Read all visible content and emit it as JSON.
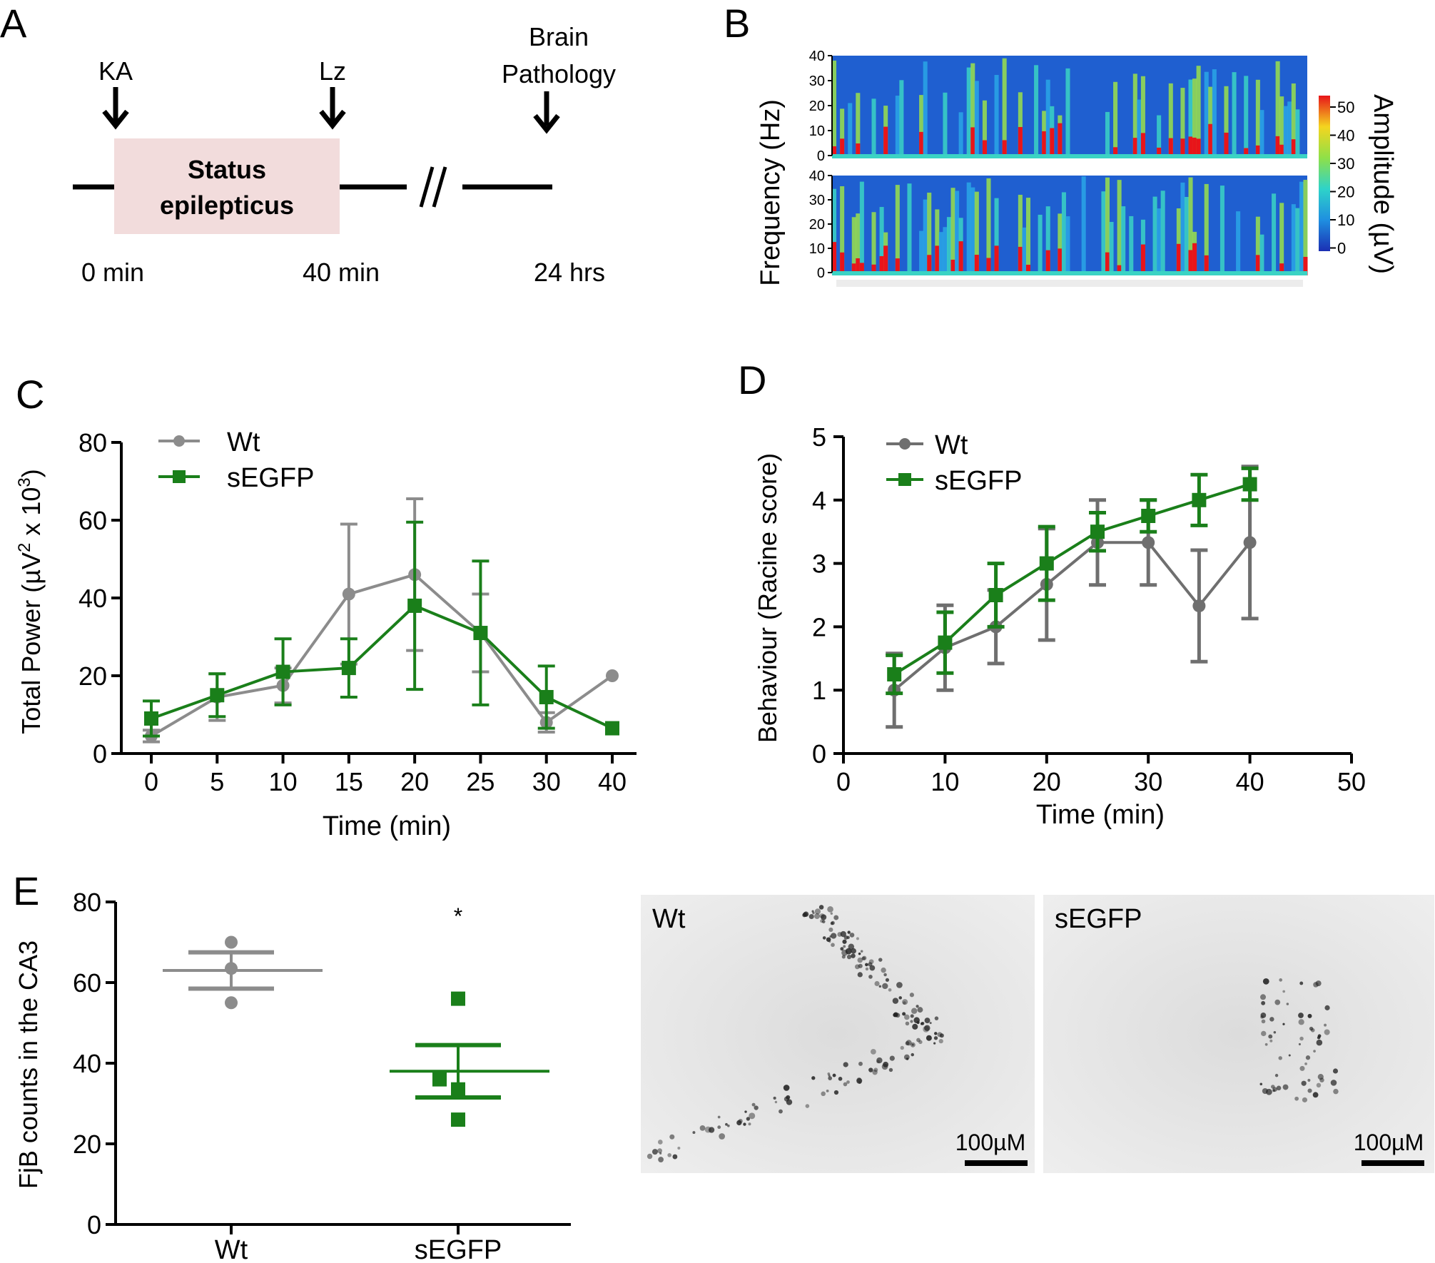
{
  "colors": {
    "wt": "#8c8c8c",
    "wt_dark": "#6f6f6f",
    "segfp": "#1a7f1a",
    "box": "#f2dcdc"
  },
  "panels": {
    "a": "A",
    "b": "B",
    "c": "C",
    "d": "D",
    "e": "E"
  },
  "timeline": {
    "ka": "KA",
    "lz": "Lz",
    "brain_line1": "Brain",
    "brain_line2": "Pathology",
    "status_line1": "Status",
    "status_line2": "epilepticus",
    "t0": "0 min",
    "t40": "40 min",
    "t24": "24 hrs"
  },
  "spectrogram": {
    "ylabel": "Frequency (Hz)",
    "yticks": [
      "40",
      "30",
      "20",
      "10",
      "0"
    ],
    "colorbar_label": "Amplitude (µV)",
    "colorbar_ticks": [
      "50",
      "40",
      "30",
      "20",
      "10",
      "0"
    ]
  },
  "micrographs": {
    "wt_label": "Wt",
    "segfp_label": "sEGFP",
    "scale_wt": "100µM",
    "scale_segfp": "100µM"
  },
  "chart_data": [
    {
      "id": "C",
      "type": "line",
      "title": "",
      "xlabel": "Time (min)",
      "ylabel": "Total Power (µV",
      "ylabel_sup": "2",
      "ylabel_mid": " x 10",
      "ylabel_sup2": "3",
      "ylabel_end": ")",
      "categories": [
        "0",
        "5",
        "10",
        "15",
        "20",
        "25",
        "30",
        "40"
      ],
      "yticks": [
        "0",
        "20",
        "40",
        "60",
        "80"
      ],
      "ylim": [
        0,
        80
      ],
      "legend": [
        "Wt",
        "sEGFP"
      ],
      "legend_position": "top-left",
      "series": [
        {
          "name": "Wt",
          "values": [
            4.5,
            14.5,
            17.5,
            41,
            46,
            31,
            8,
            20
          ],
          "err": [
            1.5,
            6,
            4.5,
            18,
            19.5,
            10,
            2.5,
            0
          ]
        },
        {
          "name": "sEGFP",
          "values": [
            9,
            15,
            21,
            22,
            38,
            31,
            14.5,
            6.5
          ],
          "err": [
            4.5,
            5.5,
            8.5,
            7.5,
            21.5,
            18.5,
            8,
            0
          ]
        }
      ]
    },
    {
      "id": "D",
      "type": "line",
      "title": "",
      "xlabel": "Time (min)",
      "ylabel": "Behaviour (Racine score)",
      "xticks": [
        "0",
        "10",
        "20",
        "30",
        "40",
        "50"
      ],
      "yticks": [
        "0",
        "1",
        "2",
        "3",
        "4",
        "5"
      ],
      "xlim": [
        0,
        50
      ],
      "ylim": [
        0,
        5
      ],
      "legend": [
        "Wt",
        "sEGFP"
      ],
      "legend_position": "top-left",
      "series": [
        {
          "name": "Wt",
          "x": [
            5,
            10,
            15,
            20,
            25,
            30,
            35,
            40
          ],
          "values": [
            1.0,
            1.67,
            2.0,
            2.67,
            3.33,
            3.33,
            2.33,
            3.33
          ],
          "err": [
            0.58,
            0.67,
            0.58,
            0.88,
            0.67,
            0.67,
            0.88,
            1.2
          ]
        },
        {
          "name": "sEGFP",
          "x": [
            5,
            10,
            15,
            20,
            25,
            30,
            35,
            40
          ],
          "values": [
            1.25,
            1.75,
            2.5,
            3.0,
            3.5,
            3.75,
            4.0,
            4.25
          ],
          "err": [
            0.3,
            0.48,
            0.5,
            0.58,
            0.3,
            0.25,
            0.4,
            0.25
          ]
        }
      ]
    },
    {
      "id": "E",
      "type": "scatter",
      "title": "",
      "xlabel": "",
      "ylabel": "FjB counts in the CA3",
      "categories": [
        "Wt",
        "sEGFP"
      ],
      "yticks": [
        "0",
        "20",
        "40",
        "60",
        "80"
      ],
      "ylim": [
        0,
        80
      ],
      "annotation": "*",
      "groups": [
        {
          "name": "Wt",
          "points": [
            70,
            63.5,
            55
          ],
          "mean": 63,
          "sem": 4.5
        },
        {
          "name": "sEGFP",
          "points": [
            56,
            36,
            33.5,
            26
          ],
          "mean": 38,
          "sem": 6.5
        }
      ]
    }
  ]
}
